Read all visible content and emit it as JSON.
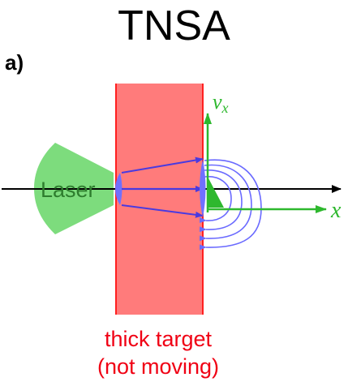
{
  "title": "TNSA",
  "panel_label": "a)",
  "diagram": {
    "laser_label": "Laser",
    "x_axis_label": "x",
    "vx_axis_label": "v",
    "vx_axis_sub": "x",
    "target_caption_line1": "thick target",
    "target_caption_line2": "(not moving)"
  },
  "colors": {
    "target_fill": "#ff7b7b",
    "target_edge": "#ff2020",
    "laser_green": "#7ddc7d",
    "axis_green": "#2eb82e",
    "beam_blue": "#4a3ae0",
    "field_blue": "#7a7aff",
    "caption_red": "#f00014"
  }
}
